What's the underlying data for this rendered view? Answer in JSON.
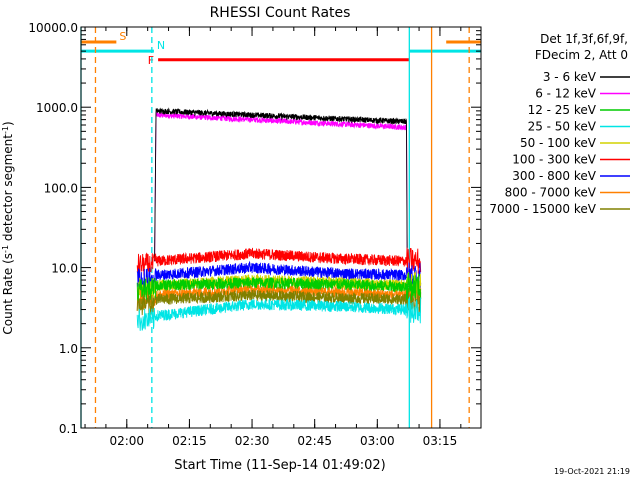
{
  "chart_data": {
    "type": "line",
    "title": "RHESSI Count Rates",
    "xlabel": "Start Time (11-Sep-14 01:49:02)",
    "ylabel_main": "Count Rate (s",
    "ylabel_sup1": "-1",
    "ylabel_mid": " detector segment",
    "ylabel_sup2": "-1",
    "ylabel_end": ")",
    "y_scale": "log",
    "ylim": [
      0.1,
      10000
    ],
    "xlim": [
      "01:49:02",
      "03:24:50"
    ],
    "x_ticks": [
      "02:00",
      "02:15",
      "02:30",
      "02:45",
      "03:00",
      "03:15"
    ],
    "y_ticks": [
      "0.1",
      "1.0",
      "10.0",
      "100.0",
      "1000.0",
      "10000.0"
    ],
    "legend_header": [
      "Det 1f,3f,6f,9f,",
      "FDecim 2, Att 0"
    ],
    "legend_position": "right",
    "series": [
      {
        "name": "3 - 6 keV",
        "color": "#000000",
        "values": {
          "02:07": 900,
          "02:30": 800,
          "02:50": 720,
          "03:07": 660
        }
      },
      {
        "name": "6 - 12 keV",
        "color": "#ff00ff",
        "values": {
          "02:07": 800,
          "02:30": 700,
          "02:50": 620,
          "03:07": 560
        }
      },
      {
        "name": "12 - 25 keV",
        "color": "#00cc00",
        "values": {
          "02:07": 6.0,
          "02:30": 6.5,
          "02:50": 6.2,
          "03:07": 5.8
        }
      },
      {
        "name": "25 - 50 keV",
        "color": "#00e5e5",
        "values": {
          "02:07": 2.5,
          "02:30": 3.5,
          "02:50": 3.3,
          "03:07": 3.0
        }
      },
      {
        "name": "50 - 100 keV",
        "color": "#d2d200",
        "values": {
          "02:07": 6.0,
          "02:30": 7.0,
          "02:50": 6.5,
          "03:07": 6.0
        }
      },
      {
        "name": "100 - 300 keV",
        "color": "#ff0000",
        "values": {
          "02:07": 12,
          "02:30": 15,
          "02:50": 13,
          "03:07": 12
        }
      },
      {
        "name": "300 - 800 keV",
        "color": "#0000ff",
        "values": {
          "02:07": 8.0,
          "02:30": 10,
          "02:50": 8.5,
          "03:07": 8.0
        }
      },
      {
        "name": "800 - 7000 keV",
        "color": "#ff8000",
        "values": {
          "02:07": 4.5,
          "02:30": 5.5,
          "02:50": 5.0,
          "03:07": 4.5
        }
      },
      {
        "name": "7000 - 15000 keV",
        "color": "#808000",
        "values": {
          "02:07": 4.0,
          "02:30": 4.5,
          "02:50": 4.2,
          "03:07": 4.0
        }
      }
    ],
    "flags": [
      {
        "label": "S",
        "color": "#ff8000",
        "segments": [
          [
            "01:49:02",
            "01:57:30"
          ],
          [
            "03:16:30",
            "03:24:50"
          ]
        ],
        "level": 6500
      },
      {
        "label": "N",
        "color": "#00e5e5",
        "segments": [
          [
            "01:49:02",
            "02:06:30"
          ],
          [
            "03:07:40",
            "03:24:50"
          ]
        ],
        "level": 5000
      },
      {
        "label": "F",
        "color": "#ff0000",
        "segments": [
          [
            "02:07:30",
            "03:07:40"
          ]
        ],
        "level": 3900
      }
    ],
    "vlines": [
      {
        "time": "01:49:02",
        "color": "#00e5e5",
        "style": "solid"
      },
      {
        "time": "01:52:30",
        "color": "#ff8000",
        "style": "dashed"
      },
      {
        "time": "02:06:00",
        "color": "#00e5e5",
        "style": "dashed"
      },
      {
        "time": "03:07:40",
        "color": "#00e5e5",
        "style": "solid"
      },
      {
        "time": "03:13:00",
        "color": "#ff8000",
        "style": "solid"
      },
      {
        "time": "03:22:00",
        "color": "#ff8000",
        "style": "dashed"
      }
    ],
    "timestamp": "19-Oct-2021 21:19"
  }
}
